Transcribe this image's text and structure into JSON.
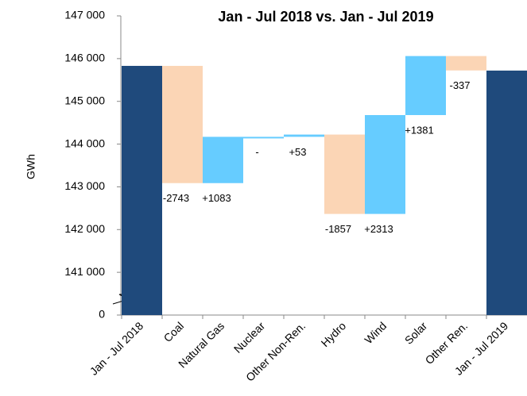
{
  "chart_data": {
    "type": "waterfall",
    "title": "Jan - Jul 2018 vs. Jan - Jul 2019",
    "y_label": "GWh",
    "categories": [
      "Jan - Jul 2018",
      "Coal",
      "Natural Gas",
      "Nuclear",
      "Other Non-Ren.",
      "Hydro",
      "Wind",
      "Solar",
      "Other Ren.",
      "Jan - Jul 2019"
    ],
    "measure": [
      "total",
      "relative",
      "relative",
      "relative",
      "relative",
      "relative",
      "relative",
      "relative",
      "relative",
      "total"
    ],
    "values": [
      145830,
      -2743,
      1083,
      0,
      53,
      -1857,
      2313,
      1381,
      -337,
      145720
    ],
    "value_labels": [
      null,
      "-2743",
      "+1083",
      "-",
      "+53",
      "-1857",
      "+2313",
      "+1381",
      "-337",
      null
    ],
    "colors": {
      "total": "#1f4a7c",
      "increase": "#66ccff",
      "decrease": "#fbd5b5"
    },
    "ylim": [
      0,
      147000
    ],
    "yticks": [
      {
        "value": 0,
        "label": "0"
      },
      {
        "value": 141000,
        "label": "141 000"
      },
      {
        "value": 142000,
        "label": "142 000"
      },
      {
        "value": 143000,
        "label": "143 000"
      },
      {
        "value": 144000,
        "label": "144 000"
      },
      {
        "value": 145000,
        "label": "145 000"
      },
      {
        "value": 146000,
        "label": "146 000"
      },
      {
        "value": 147000,
        "label": "147 000"
      }
    ],
    "axis_break": true
  }
}
